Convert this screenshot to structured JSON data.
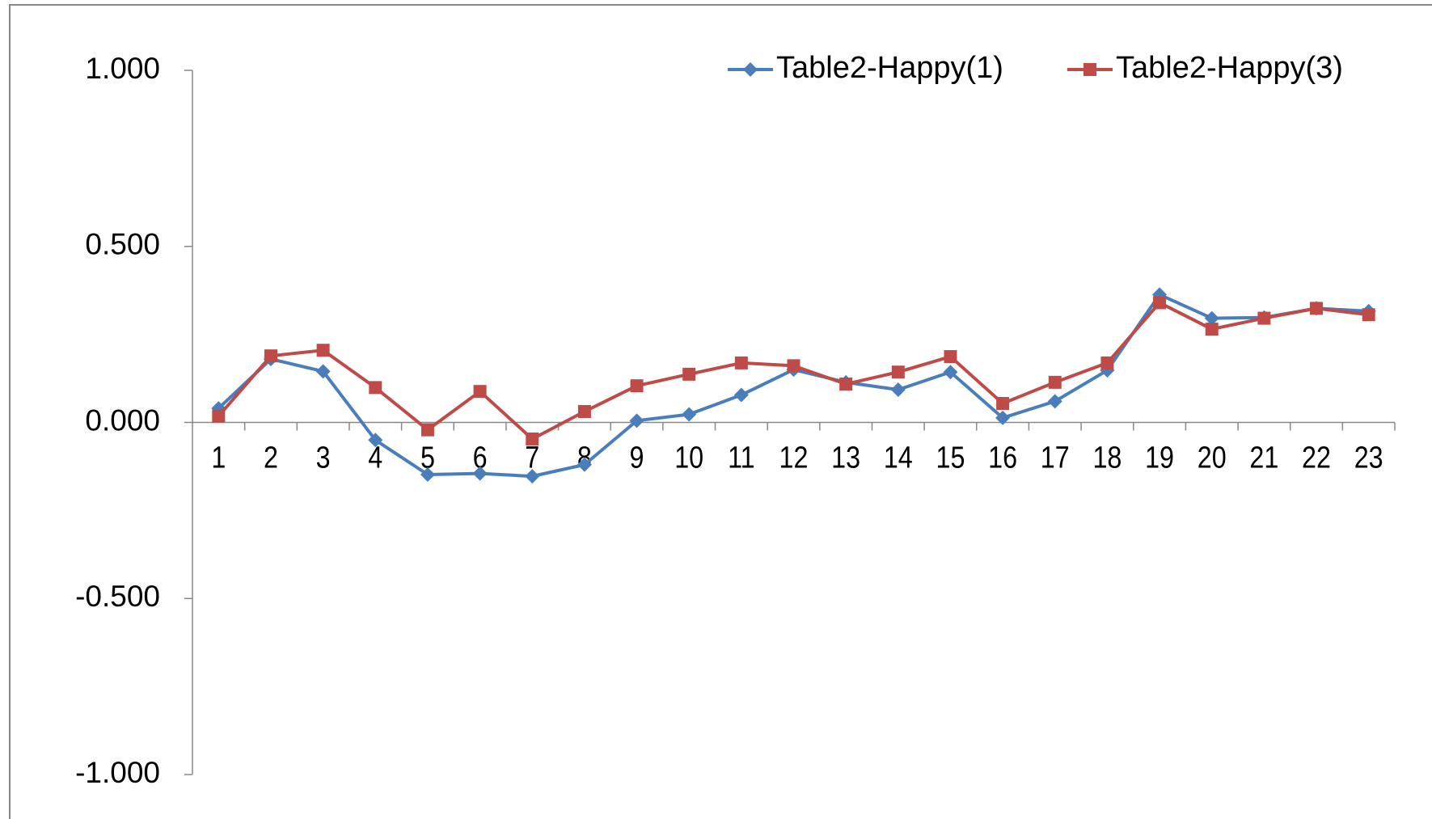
{
  "chart_data": {
    "type": "line",
    "categories": [
      "1",
      "2",
      "3",
      "4",
      "5",
      "6",
      "7",
      "8",
      "9",
      "10",
      "11",
      "12",
      "13",
      "14",
      "15",
      "16",
      "17",
      "18",
      "19",
      "20",
      "21",
      "22",
      "23"
    ],
    "series": [
      {
        "name": "Table2-Happy(1)",
        "color": "#4a7ebb",
        "marker": "diamond",
        "values": [
          0.04,
          0.18,
          0.145,
          -0.05,
          -0.148,
          -0.145,
          -0.153,
          -0.12,
          0.005,
          0.023,
          0.078,
          0.15,
          0.114,
          0.093,
          0.143,
          0.013,
          0.06,
          0.148,
          0.363,
          0.296,
          0.298,
          0.324,
          0.316
        ]
      },
      {
        "name": "Table2-Happy(3)",
        "color": "#be4b48",
        "marker": "square",
        "values": [
          0.018,
          0.189,
          0.205,
          0.099,
          -0.021,
          0.088,
          -0.047,
          0.031,
          0.104,
          0.137,
          0.169,
          0.161,
          0.109,
          0.143,
          0.187,
          0.054,
          0.114,
          0.169,
          0.34,
          0.265,
          0.296,
          0.324,
          0.306
        ]
      }
    ],
    "ylim": [
      -1,
      1
    ],
    "yticks": [
      {
        "value": -1,
        "label": "-1.000"
      },
      {
        "value": -0.5,
        "label": "-0.500"
      },
      {
        "value": 0,
        "label": "0.000"
      },
      {
        "value": 0.5,
        "label": "0.500"
      },
      {
        "value": 1,
        "label": "1.000"
      }
    ],
    "legend": "upper right"
  }
}
